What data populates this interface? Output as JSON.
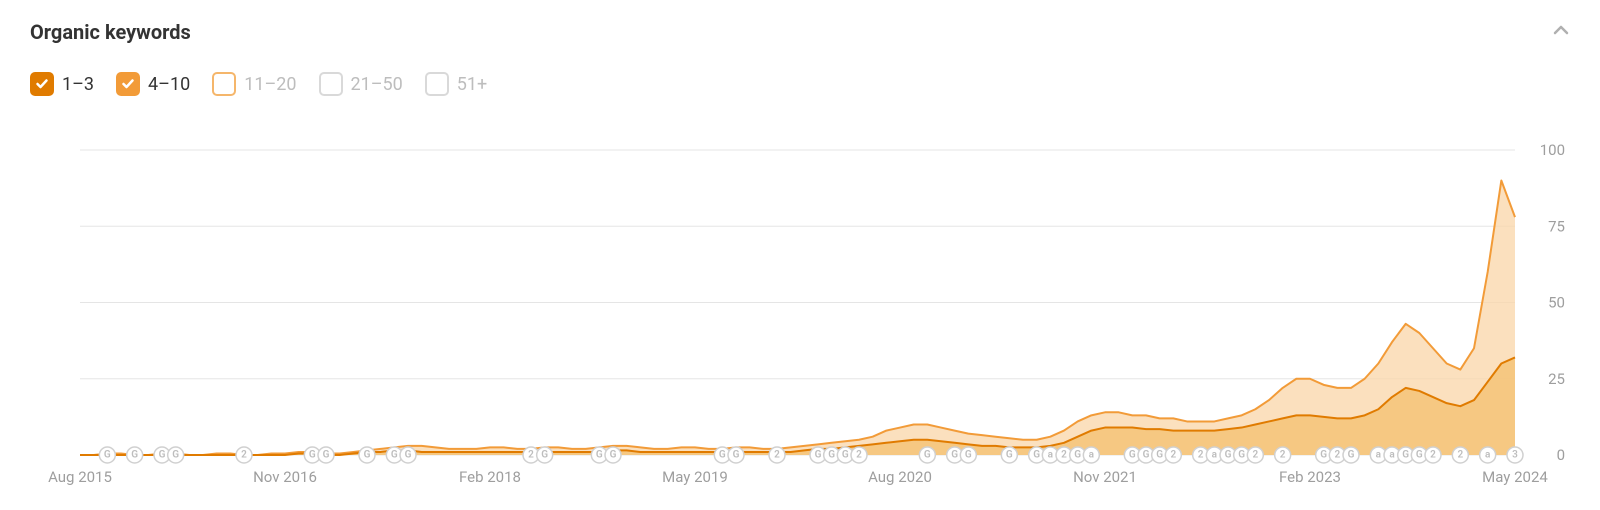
{
  "title": "Organic keywords",
  "legend": [
    {
      "label": "1–3",
      "checked": true,
      "fill": "#e07b00",
      "border": "#e07b00",
      "muted": false
    },
    {
      "label": "4–10",
      "checked": true,
      "fill": "#f29b38",
      "border": "#f29b38",
      "muted": false
    },
    {
      "label": "11–20",
      "checked": false,
      "fill": "none",
      "border": "#f5b66b",
      "muted": true
    },
    {
      "label": "21–50",
      "checked": false,
      "fill": "none",
      "border": "#d9d9d9",
      "muted": true
    },
    {
      "label": "51+",
      "checked": false,
      "fill": "none",
      "border": "#d9d9d9",
      "muted": true
    }
  ],
  "chart": {
    "type": "area",
    "ylim": [
      0,
      100
    ],
    "yticks": [
      0,
      25,
      50,
      75,
      100
    ],
    "x_range": [
      0,
      105
    ],
    "x_axis_labels": [
      {
        "x": 0,
        "text": "Aug 2015"
      },
      {
        "x": 15,
        "text": "Nov 2016"
      },
      {
        "x": 30,
        "text": "Feb 2018"
      },
      {
        "x": 45,
        "text": "May 2019"
      },
      {
        "x": 60,
        "text": "Aug 2020"
      },
      {
        "x": 75,
        "text": "Nov 2021"
      },
      {
        "x": 90,
        "text": "Feb 2023"
      },
      {
        "x": 105,
        "text": "May 2024"
      }
    ],
    "grid_color": "#e5e5e5",
    "background_color": "#ffffff",
    "series": [
      {
        "name": "4-10",
        "stroke": "#f29b38",
        "fill": "#f9d6a8",
        "fill_opacity": 0.75,
        "line_width": 2,
        "points": [
          [
            0,
            0
          ],
          [
            1,
            0
          ],
          [
            2,
            0.5
          ],
          [
            3,
            0.5
          ],
          [
            4,
            0
          ],
          [
            5,
            0
          ],
          [
            6,
            0.5
          ],
          [
            7,
            0.5
          ],
          [
            8,
            0
          ],
          [
            9,
            0
          ],
          [
            10,
            0.5
          ],
          [
            11,
            0.5
          ],
          [
            12,
            0
          ],
          [
            13,
            0
          ],
          [
            14,
            0.5
          ],
          [
            15,
            0.5
          ],
          [
            16,
            1
          ],
          [
            17,
            1
          ],
          [
            18,
            0.5
          ],
          [
            19,
            0.5
          ],
          [
            20,
            1
          ],
          [
            21,
            1.5
          ],
          [
            22,
            2
          ],
          [
            23,
            2.5
          ],
          [
            24,
            3
          ],
          [
            25,
            3
          ],
          [
            26,
            2.5
          ],
          [
            27,
            2
          ],
          [
            28,
            2
          ],
          [
            29,
            2
          ],
          [
            30,
            2.5
          ],
          [
            31,
            2.5
          ],
          [
            32,
            2
          ],
          [
            33,
            2
          ],
          [
            34,
            2.5
          ],
          [
            35,
            2.5
          ],
          [
            36,
            2
          ],
          [
            37,
            2
          ],
          [
            38,
            2.5
          ],
          [
            39,
            3
          ],
          [
            40,
            3
          ],
          [
            41,
            2.5
          ],
          [
            42,
            2
          ],
          [
            43,
            2
          ],
          [
            44,
            2.5
          ],
          [
            45,
            2.5
          ],
          [
            46,
            2
          ],
          [
            47,
            2
          ],
          [
            48,
            2.5
          ],
          [
            49,
            2.5
          ],
          [
            50,
            2
          ],
          [
            51,
            2
          ],
          [
            52,
            2.5
          ],
          [
            53,
            3
          ],
          [
            54,
            3.5
          ],
          [
            55,
            4
          ],
          [
            56,
            4.5
          ],
          [
            57,
            5
          ],
          [
            58,
            6
          ],
          [
            59,
            8
          ],
          [
            60,
            9
          ],
          [
            61,
            10
          ],
          [
            62,
            10
          ],
          [
            63,
            9
          ],
          [
            64,
            8
          ],
          [
            65,
            7
          ],
          [
            66,
            6.5
          ],
          [
            67,
            6
          ],
          [
            68,
            5.5
          ],
          [
            69,
            5
          ],
          [
            70,
            5
          ],
          [
            71,
            6
          ],
          [
            72,
            8
          ],
          [
            73,
            11
          ],
          [
            74,
            13
          ],
          [
            75,
            14
          ],
          [
            76,
            14
          ],
          [
            77,
            13
          ],
          [
            78,
            13
          ],
          [
            79,
            12
          ],
          [
            80,
            12
          ],
          [
            81,
            11
          ],
          [
            82,
            11
          ],
          [
            83,
            11
          ],
          [
            84,
            12
          ],
          [
            85,
            13
          ],
          [
            86,
            15
          ],
          [
            87,
            18
          ],
          [
            88,
            22
          ],
          [
            89,
            25
          ],
          [
            90,
            25
          ],
          [
            91,
            23
          ],
          [
            92,
            22
          ],
          [
            93,
            22
          ],
          [
            94,
            25
          ],
          [
            95,
            30
          ],
          [
            96,
            37
          ],
          [
            97,
            43
          ],
          [
            98,
            40
          ],
          [
            99,
            35
          ],
          [
            100,
            30
          ],
          [
            101,
            28
          ],
          [
            102,
            35
          ],
          [
            103,
            60
          ],
          [
            104,
            90
          ],
          [
            105,
            78
          ]
        ]
      },
      {
        "name": "1-3",
        "stroke": "#e07b00",
        "fill": "#f5c378",
        "fill_opacity": 0.85,
        "line_width": 2,
        "points": [
          [
            0,
            0
          ],
          [
            1,
            0
          ],
          [
            2,
            0
          ],
          [
            3,
            0
          ],
          [
            4,
            0
          ],
          [
            5,
            0
          ],
          [
            6,
            0
          ],
          [
            7,
            0
          ],
          [
            8,
            0
          ],
          [
            9,
            0
          ],
          [
            10,
            0
          ],
          [
            11,
            0
          ],
          [
            12,
            0
          ],
          [
            13,
            0
          ],
          [
            14,
            0
          ],
          [
            15,
            0
          ],
          [
            16,
            0.5
          ],
          [
            17,
            0.5
          ],
          [
            18,
            0
          ],
          [
            19,
            0
          ],
          [
            20,
            0.5
          ],
          [
            21,
            1
          ],
          [
            22,
            1
          ],
          [
            23,
            1.5
          ],
          [
            24,
            1.5
          ],
          [
            25,
            1
          ],
          [
            26,
            1
          ],
          [
            27,
            1
          ],
          [
            28,
            1
          ],
          [
            29,
            1
          ],
          [
            30,
            1
          ],
          [
            31,
            1
          ],
          [
            32,
            1
          ],
          [
            33,
            1
          ],
          [
            34,
            1
          ],
          [
            35,
            1
          ],
          [
            36,
            1
          ],
          [
            37,
            1
          ],
          [
            38,
            1
          ],
          [
            39,
            1.5
          ],
          [
            40,
            1.5
          ],
          [
            41,
            1
          ],
          [
            42,
            1
          ],
          [
            43,
            1
          ],
          [
            44,
            1
          ],
          [
            45,
            1
          ],
          [
            46,
            1
          ],
          [
            47,
            1
          ],
          [
            48,
            1
          ],
          [
            49,
            1
          ],
          [
            50,
            1
          ],
          [
            51,
            1
          ],
          [
            52,
            1
          ],
          [
            53,
            1.5
          ],
          [
            54,
            2
          ],
          [
            55,
            2
          ],
          [
            56,
            2.5
          ],
          [
            57,
            3
          ],
          [
            58,
            3.5
          ],
          [
            59,
            4
          ],
          [
            60,
            4.5
          ],
          [
            61,
            5
          ],
          [
            62,
            5
          ],
          [
            63,
            4.5
          ],
          [
            64,
            4
          ],
          [
            65,
            3.5
          ],
          [
            66,
            3
          ],
          [
            67,
            3
          ],
          [
            68,
            2.5
          ],
          [
            69,
            2.5
          ],
          [
            70,
            2.5
          ],
          [
            71,
            3
          ],
          [
            72,
            4
          ],
          [
            73,
            6
          ],
          [
            74,
            8
          ],
          [
            75,
            9
          ],
          [
            76,
            9
          ],
          [
            77,
            9
          ],
          [
            78,
            8.5
          ],
          [
            79,
            8.5
          ],
          [
            80,
            8
          ],
          [
            81,
            8
          ],
          [
            82,
            8
          ],
          [
            83,
            8
          ],
          [
            84,
            8.5
          ],
          [
            85,
            9
          ],
          [
            86,
            10
          ],
          [
            87,
            11
          ],
          [
            88,
            12
          ],
          [
            89,
            13
          ],
          [
            90,
            13
          ],
          [
            91,
            12.5
          ],
          [
            92,
            12
          ],
          [
            93,
            12
          ],
          [
            94,
            13
          ],
          [
            95,
            15
          ],
          [
            96,
            19
          ],
          [
            97,
            22
          ],
          [
            98,
            21
          ],
          [
            99,
            19
          ],
          [
            100,
            17
          ],
          [
            101,
            16
          ],
          [
            102,
            18
          ],
          [
            103,
            24
          ],
          [
            104,
            30
          ],
          [
            105,
            32
          ]
        ]
      }
    ],
    "markers": [
      {
        "x": 2,
        "t": "G"
      },
      {
        "x": 4,
        "t": "G"
      },
      {
        "x": 6,
        "t": "G"
      },
      {
        "x": 7,
        "t": "G"
      },
      {
        "x": 12,
        "t": "2"
      },
      {
        "x": 17,
        "t": "G"
      },
      {
        "x": 18,
        "t": "G"
      },
      {
        "x": 21,
        "t": "G"
      },
      {
        "x": 23,
        "t": "G"
      },
      {
        "x": 24,
        "t": "G"
      },
      {
        "x": 33,
        "t": "2"
      },
      {
        "x": 34,
        "t": "G"
      },
      {
        "x": 38,
        "t": "G"
      },
      {
        "x": 39,
        "t": "G"
      },
      {
        "x": 47,
        "t": "G"
      },
      {
        "x": 48,
        "t": "G"
      },
      {
        "x": 51,
        "t": "2"
      },
      {
        "x": 54,
        "t": "G"
      },
      {
        "x": 55,
        "t": "G"
      },
      {
        "x": 56,
        "t": "G"
      },
      {
        "x": 57,
        "t": "2"
      },
      {
        "x": 62,
        "t": "G"
      },
      {
        "x": 64,
        "t": "G"
      },
      {
        "x": 65,
        "t": "G"
      },
      {
        "x": 68,
        "t": "G"
      },
      {
        "x": 70,
        "t": "G"
      },
      {
        "x": 71,
        "t": "a"
      },
      {
        "x": 72,
        "t": "2"
      },
      {
        "x": 73,
        "t": "G"
      },
      {
        "x": 74,
        "t": "a"
      },
      {
        "x": 77,
        "t": "G"
      },
      {
        "x": 78,
        "t": "G"
      },
      {
        "x": 79,
        "t": "G"
      },
      {
        "x": 80,
        "t": "2"
      },
      {
        "x": 82,
        "t": "2"
      },
      {
        "x": 83,
        "t": "a"
      },
      {
        "x": 84,
        "t": "G"
      },
      {
        "x": 85,
        "t": "G"
      },
      {
        "x": 86,
        "t": "2"
      },
      {
        "x": 88,
        "t": "2"
      },
      {
        "x": 91,
        "t": "G"
      },
      {
        "x": 92,
        "t": "2"
      },
      {
        "x": 93,
        "t": "G"
      },
      {
        "x": 95,
        "t": "a"
      },
      {
        "x": 96,
        "t": "a"
      },
      {
        "x": 97,
        "t": "G"
      },
      {
        "x": 98,
        "t": "G"
      },
      {
        "x": 99,
        "t": "2"
      },
      {
        "x": 101,
        "t": "2"
      },
      {
        "x": 103,
        "t": "a"
      },
      {
        "x": 105,
        "t": "3"
      }
    ],
    "marker_radius": 8,
    "marker_stroke": "#d0d0d0",
    "marker_fill": "#ffffff",
    "label_color": "#9e9e9e",
    "label_fontsize": 15
  }
}
